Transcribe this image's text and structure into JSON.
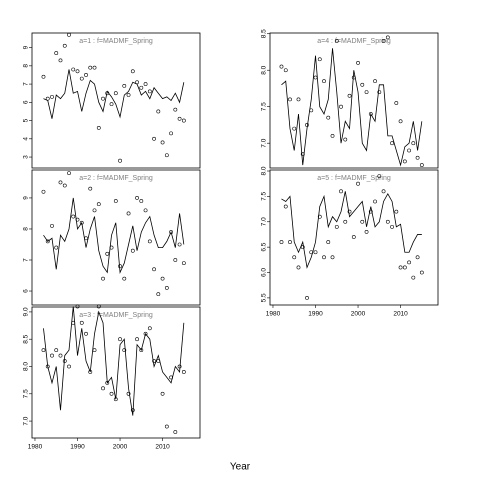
{
  "xlabel": "Year",
  "chart_data": [
    {
      "type": "line",
      "title": "a=1 : f=MADMF_Spring",
      "x": [
        1982,
        1983,
        1984,
        1985,
        1986,
        1987,
        1988,
        1989,
        1990,
        1991,
        1992,
        1993,
        1994,
        1995,
        1996,
        1997,
        1998,
        1999,
        2000,
        2001,
        2002,
        2003,
        2004,
        2005,
        2006,
        2007,
        2008,
        2009,
        2010,
        2011,
        2012,
        2013,
        2014,
        2015
      ],
      "xlim": [
        1979.3,
        2018.8
      ],
      "xticks": [
        1980,
        1990,
        2000,
        2010
      ],
      "xtick_labels": false,
      "ylim": [
        2.4,
        9.8
      ],
      "yticks": [
        3,
        4,
        5,
        6,
        7,
        8,
        9
      ],
      "series": [
        {
          "style": "line",
          "color": "#000000",
          "values": [
            6.2,
            6.1,
            5.1,
            6.4,
            6.2,
            6.5,
            7.8,
            6.5,
            6.6,
            5.5,
            6.5,
            7.2,
            7.0,
            6.0,
            5.5,
            6.6,
            6.3,
            5.9,
            5.2,
            6.4,
            6.6,
            7.1,
            7.0,
            6.4,
            6.6,
            6.2,
            6.8,
            6.5,
            6.2,
            6.3,
            6.1,
            6.5,
            6.0,
            7.1
          ]
        },
        {
          "style": "points",
          "color": "#000000",
          "values": [
            7.4,
            6.2,
            6.3,
            8.7,
            8.3,
            9.1,
            9.7,
            7.8,
            7.7,
            7.3,
            7.5,
            7.9,
            7.9,
            4.6,
            6.2,
            6.5,
            5.9,
            6.5,
            2.8,
            6.9,
            6.4,
            7.7,
            7.1,
            6.8,
            7.0,
            6.6,
            4.0,
            5.5,
            3.8,
            3.1,
            4.3,
            5.6,
            5.1,
            5.0
          ]
        }
      ]
    },
    {
      "type": "line",
      "title": "a=2 : f=MADMF_Spring",
      "x": [
        1982,
        1983,
        1984,
        1985,
        1986,
        1987,
        1988,
        1989,
        1990,
        1991,
        1992,
        1993,
        1994,
        1995,
        1996,
        1997,
        1998,
        1999,
        2000,
        2001,
        2002,
        2003,
        2004,
        2005,
        2006,
        2007,
        2008,
        2009,
        2010,
        2011,
        2012,
        2013,
        2014,
        2015
      ],
      "xlim": [
        1979.3,
        2018.8
      ],
      "xticks": [
        1980,
        1990,
        2000,
        2010
      ],
      "xtick_labels": false,
      "ylim": [
        5.55,
        9.9
      ],
      "yticks": [
        6,
        7,
        8,
        9
      ],
      "series": [
        {
          "style": "line",
          "color": "#000000",
          "values": [
            7.8,
            7.6,
            7.7,
            6.7,
            7.8,
            7.6,
            8.0,
            9.0,
            8.0,
            8.2,
            7.4,
            8.0,
            8.4,
            7.3,
            6.8,
            6.6,
            7.8,
            8.2,
            6.6,
            6.9,
            7.5,
            8.1,
            7.3,
            7.9,
            8.2,
            8.4,
            7.8,
            7.4,
            7.4,
            7.6,
            7.9,
            7.4,
            8.5,
            7.5
          ]
        },
        {
          "style": "points",
          "color": "#000000",
          "values": [
            9.2,
            7.6,
            8.1,
            7.4,
            9.5,
            9.4,
            9.8,
            8.4,
            8.3,
            8.2,
            7.7,
            9.3,
            8.6,
            8.8,
            6.4,
            7.2,
            7.4,
            8.9,
            6.8,
            6.4,
            8.5,
            7.3,
            9.0,
            8.9,
            8.6,
            7.6,
            6.7,
            5.9,
            6.4,
            6.1,
            7.9,
            7.0,
            7.5,
            6.9
          ]
        }
      ]
    },
    {
      "type": "line",
      "title": "a=3 : f=MADMF_Spring",
      "x": [
        1982,
        1983,
        1984,
        1985,
        1986,
        1987,
        1988,
        1989,
        1990,
        1991,
        1992,
        1993,
        1994,
        1995,
        1996,
        1997,
        1998,
        1999,
        2000,
        2001,
        2002,
        2003,
        2004,
        2005,
        2006,
        2007,
        2008,
        2009,
        2010,
        2011,
        2012,
        2013,
        2014,
        2015
      ],
      "xlim": [
        1979.3,
        2018.8
      ],
      "xticks": [
        1980,
        1990,
        2000,
        2010
      ],
      "xtick_labels": true,
      "ylim": [
        6.69,
        9.09
      ],
      "yticks": [
        {
          "value": 7,
          "label": "7.0"
        },
        7.5,
        {
          "value": 8,
          "label": "8.0"
        },
        8.5,
        {
          "value": 9,
          "label": "9.0"
        }
      ],
      "series": [
        {
          "style": "line",
          "color": "#000000",
          "values": [
            8.7,
            8.0,
            7.7,
            8.0,
            7.2,
            8.2,
            8.3,
            9.1,
            8.2,
            8.7,
            8.1,
            7.9,
            8.6,
            9.0,
            8.8,
            7.7,
            7.8,
            7.4,
            8.4,
            8.5,
            7.6,
            7.1,
            8.4,
            8.3,
            8.6,
            8.5,
            8.0,
            8.2,
            7.9,
            7.8,
            7.7,
            8.0,
            7.9,
            8.8
          ]
        },
        {
          "style": "points",
          "color": "#000000",
          "values": [
            8.3,
            8.0,
            8.2,
            8.3,
            8.2,
            8.1,
            8.0,
            8.8,
            9.1,
            8.8,
            8.6,
            7.9,
            8.3,
            9.1,
            7.6,
            7.7,
            7.5,
            7.4,
            8.5,
            8.3,
            7.5,
            7.2,
            8.5,
            8.3,
            8.6,
            8.7,
            8.1,
            8.1,
            7.5,
            6.9,
            7.8,
            6.8,
            8.0,
            7.9
          ]
        }
      ]
    },
    {
      "type": "line",
      "title": "a=4 : f=MADMF_Spring",
      "x": [
        1982,
        1983,
        1984,
        1985,
        1986,
        1987,
        1988,
        1989,
        1990,
        1991,
        1992,
        1993,
        1994,
        1995,
        1996,
        1997,
        1998,
        1999,
        2000,
        2001,
        2002,
        2003,
        2004,
        2005,
        2006,
        2007,
        2008,
        2009,
        2010,
        2011,
        2012,
        2013,
        2014,
        2015
      ],
      "xlim": [
        1979.3,
        2018.8
      ],
      "xticks": [
        1980,
        1990,
        2000,
        2010
      ],
      "xtick_labels": false,
      "ylim": [
        6.66,
        8.51
      ],
      "yticks": [
        {
          "value": 7,
          "label": "7.0"
        },
        7.5,
        {
          "value": 8,
          "label": "8.0"
        },
        8.5
      ],
      "series": [
        {
          "style": "line",
          "color": "#000000",
          "values": [
            7.8,
            7.85,
            7.2,
            6.9,
            7.4,
            6.7,
            7.2,
            7.6,
            8.2,
            7.5,
            7.4,
            7.6,
            8.3,
            7.7,
            7.0,
            7.3,
            7.2,
            8.0,
            7.7,
            7.0,
            6.9,
            7.4,
            7.3,
            7.8,
            7.8,
            7.1,
            7.1,
            6.9,
            6.7,
            6.95,
            7.0,
            7.3,
            6.9,
            7.3
          ]
        },
        {
          "style": "points",
          "color": "#000000",
          "values": [
            8.05,
            8.0,
            7.6,
            7.2,
            7.6,
            6.85,
            7.25,
            7.45,
            7.9,
            8.15,
            7.85,
            7.35,
            7.1,
            8.4,
            7.5,
            7.05,
            7.65,
            7.9,
            8.1,
            7.8,
            7.7,
            7.4,
            7.85,
            7.7,
            8.4,
            8.45,
            7.0,
            7.55,
            7.3,
            6.75,
            6.9,
            7.0,
            6.8,
            6.7
          ]
        }
      ]
    },
    {
      "type": "line",
      "title": "a=5 : f=MADMF_Spring",
      "x": [
        1982,
        1983,
        1984,
        1985,
        1986,
        1987,
        1988,
        1989,
        1990,
        1991,
        1992,
        1993,
        1994,
        1995,
        1996,
        1997,
        1998,
        1999,
        2000,
        2001,
        2002,
        2003,
        2004,
        2005,
        2006,
        2007,
        2008,
        2009,
        2010,
        2011,
        2012,
        2013,
        2014,
        2015
      ],
      "xlim": [
        1979.3,
        2018.8
      ],
      "xticks": [
        1980,
        1990,
        2000,
        2010
      ],
      "xtick_labels": true,
      "ylim": [
        5.36,
        8.02
      ],
      "yticks": [
        5.5,
        {
          "value": 6,
          "label": "6.0"
        },
        6.5,
        {
          "value": 7,
          "label": "7.0"
        },
        7.5,
        {
          "value": 8,
          "label": "8.0"
        }
      ],
      "series": [
        {
          "style": "line",
          "color": "#000000",
          "values": [
            7.45,
            7.4,
            7.5,
            6.6,
            6.4,
            6.6,
            6.1,
            6.3,
            6.6,
            7.3,
            7.5,
            6.9,
            7.1,
            7.0,
            7.2,
            7.6,
            7.1,
            7.2,
            7.3,
            7.4,
            6.9,
            7.3,
            6.9,
            7.0,
            7.4,
            7.55,
            7.4,
            6.9,
            6.95,
            6.4,
            6.4,
            6.6,
            6.75,
            6.75
          ]
        },
        {
          "style": "points",
          "color": "#000000",
          "values": [
            6.6,
            7.3,
            6.6,
            6.3,
            6.1,
            6.5,
            5.5,
            6.4,
            6.4,
            7.1,
            6.3,
            6.6,
            6.3,
            6.9,
            7.6,
            7.0,
            7.2,
            6.7,
            7.75,
            7.0,
            6.8,
            7.2,
            7.4,
            7.9,
            7.6,
            7.0,
            6.9,
            7.2,
            6.1,
            6.1,
            6.2,
            5.9,
            6.3,
            6.0
          ]
        }
      ]
    }
  ]
}
